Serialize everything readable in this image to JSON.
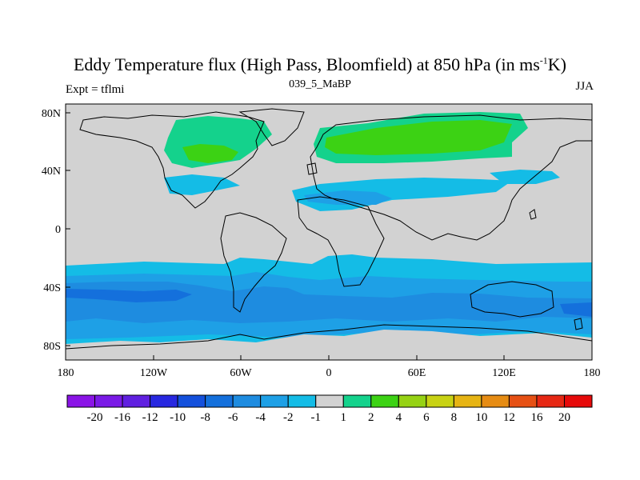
{
  "title": {
    "main": "Eddy Temperature flux (High Pass, Bloomfield) at 850 hPa (in ms",
    "superscript": "-1",
    "suffix": "K)"
  },
  "subtitle_left": "Expt = tflmi",
  "subtitle_center": "039_5_MaBP",
  "subtitle_right": "JJA",
  "axes": {
    "x_ticks": [
      "180",
      "120W",
      "60W",
      "0",
      "60E",
      "120E",
      "180"
    ],
    "y_ticks": [
      "80N",
      "40N",
      "0",
      "40S",
      "80S"
    ]
  },
  "colorbar": {
    "labels": [
      "-20",
      "-16",
      "-12",
      "-10",
      "-8",
      "-6",
      "-4",
      "-2",
      "-1",
      "1",
      "2",
      "4",
      "6",
      "8",
      "10",
      "12",
      "16",
      "20"
    ],
    "colors": [
      "#8a14e6",
      "#7a1ae6",
      "#6020e0",
      "#2828e0",
      "#1450dc",
      "#1470dc",
      "#1e8ce0",
      "#1ea0e6",
      "#14bce6",
      "#d2d2d2",
      "#14d28c",
      "#3cd214",
      "#96d214",
      "#c8d214",
      "#e6b414",
      "#e68c14",
      "#e65014",
      "#e62814",
      "#e60a0a"
    ]
  },
  "colors": {
    "land_neutral": "#d2d2d2",
    "coast": "#000000"
  }
}
